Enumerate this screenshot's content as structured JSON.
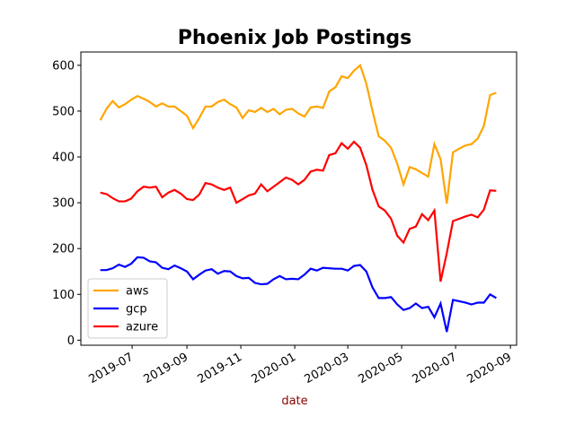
{
  "chart_data": {
    "type": "line",
    "title": "Phoenix Job Postings",
    "xlabel": "date",
    "x": [
      "2019-05-26",
      "2019-06-02",
      "2019-06-09",
      "2019-06-16",
      "2019-06-23",
      "2019-06-30",
      "2019-07-07",
      "2019-07-14",
      "2019-07-21",
      "2019-07-28",
      "2019-08-04",
      "2019-08-11",
      "2019-08-18",
      "2019-08-25",
      "2019-09-01",
      "2019-09-08",
      "2019-09-15",
      "2019-09-22",
      "2019-09-29",
      "2019-10-06",
      "2019-10-13",
      "2019-10-20",
      "2019-10-27",
      "2019-11-03",
      "2019-11-10",
      "2019-11-17",
      "2019-11-24",
      "2019-12-01",
      "2019-12-08",
      "2019-12-15",
      "2019-12-22",
      "2019-12-29",
      "2020-01-05",
      "2020-01-12",
      "2020-01-19",
      "2020-01-26",
      "2020-02-02",
      "2020-02-09",
      "2020-02-16",
      "2020-02-23",
      "2020-03-01",
      "2020-03-08",
      "2020-03-15",
      "2020-03-22",
      "2020-03-29",
      "2020-04-05",
      "2020-04-12",
      "2020-04-19",
      "2020-04-26",
      "2020-05-03",
      "2020-05-10",
      "2020-05-17",
      "2020-05-24",
      "2020-05-31",
      "2020-06-07",
      "2020-06-14",
      "2020-06-21",
      "2020-06-28",
      "2020-07-05",
      "2020-07-12",
      "2020-07-19",
      "2020-07-26",
      "2020-08-02",
      "2020-08-09",
      "2020-08-16"
    ],
    "series": [
      {
        "name": "aws",
        "color": "#ffa500",
        "values": [
          480,
          505,
          522,
          508,
          515,
          525,
          533,
          527,
          520,
          510,
          517,
          510,
          510,
          500,
          490,
          463,
          485,
          510,
          510,
          520,
          525,
          515,
          508,
          485,
          502,
          498,
          507,
          498,
          505,
          493,
          503,
          505,
          495,
          488,
          508,
          510,
          507,
          543,
          552,
          576,
          572,
          588,
          600,
          560,
          500,
          445,
          435,
          420,
          385,
          340,
          378,
          373,
          365,
          357,
          428,
          395,
          298,
          410,
          418,
          425,
          428,
          440,
          468,
          535,
          540
        ]
      },
      {
        "name": "gcp",
        "color": "#0000ff",
        "values": [
          153,
          153,
          157,
          165,
          160,
          167,
          181,
          180,
          172,
          170,
          158,
          155,
          163,
          157,
          150,
          133,
          143,
          152,
          155,
          145,
          151,
          150,
          140,
          135,
          136,
          125,
          122,
          123,
          133,
          140,
          133,
          134,
          133,
          143,
          156,
          152,
          158,
          157,
          156,
          156,
          152,
          162,
          164,
          150,
          115,
          92,
          92,
          94,
          78,
          66,
          70,
          80,
          70,
          73,
          50,
          80,
          18,
          88,
          85,
          82,
          78,
          82,
          82,
          100,
          92
        ]
      },
      {
        "name": "azure",
        "color": "#ff0000",
        "values": [
          322,
          319,
          310,
          303,
          303,
          309,
          325,
          335,
          333,
          335,
          312,
          322,
          328,
          320,
          308,
          306,
          318,
          343,
          340,
          333,
          328,
          333,
          300,
          308,
          316,
          320,
          340,
          325,
          335,
          345,
          355,
          350,
          340,
          350,
          368,
          372,
          370,
          404,
          408,
          430,
          418,
          433,
          420,
          382,
          328,
          292,
          283,
          265,
          228,
          213,
          243,
          248,
          275,
          262,
          283,
          128,
          190,
          260,
          265,
          270,
          274,
          268,
          285,
          327,
          326
        ]
      }
    ],
    "xlim": [
      "2019-05-04",
      "2020-09-08"
    ],
    "xticks": [
      {
        "value": "2019-07-01",
        "label": "2019-07"
      },
      {
        "value": "2019-09-01",
        "label": "2019-09"
      },
      {
        "value": "2019-11-01",
        "label": "2019-11"
      },
      {
        "value": "2020-01-01",
        "label": "2020-01"
      },
      {
        "value": "2020-03-01",
        "label": "2020-03"
      },
      {
        "value": "2020-05-01",
        "label": "2020-05"
      },
      {
        "value": "2020-07-01",
        "label": "2020-07"
      },
      {
        "value": "2020-09-01",
        "label": "2020-09"
      }
    ],
    "ylim": [
      -11,
      629
    ],
    "yticks": [
      0,
      100,
      200,
      300,
      400,
      500,
      600
    ],
    "legend": "lower left",
    "grid": false
  }
}
